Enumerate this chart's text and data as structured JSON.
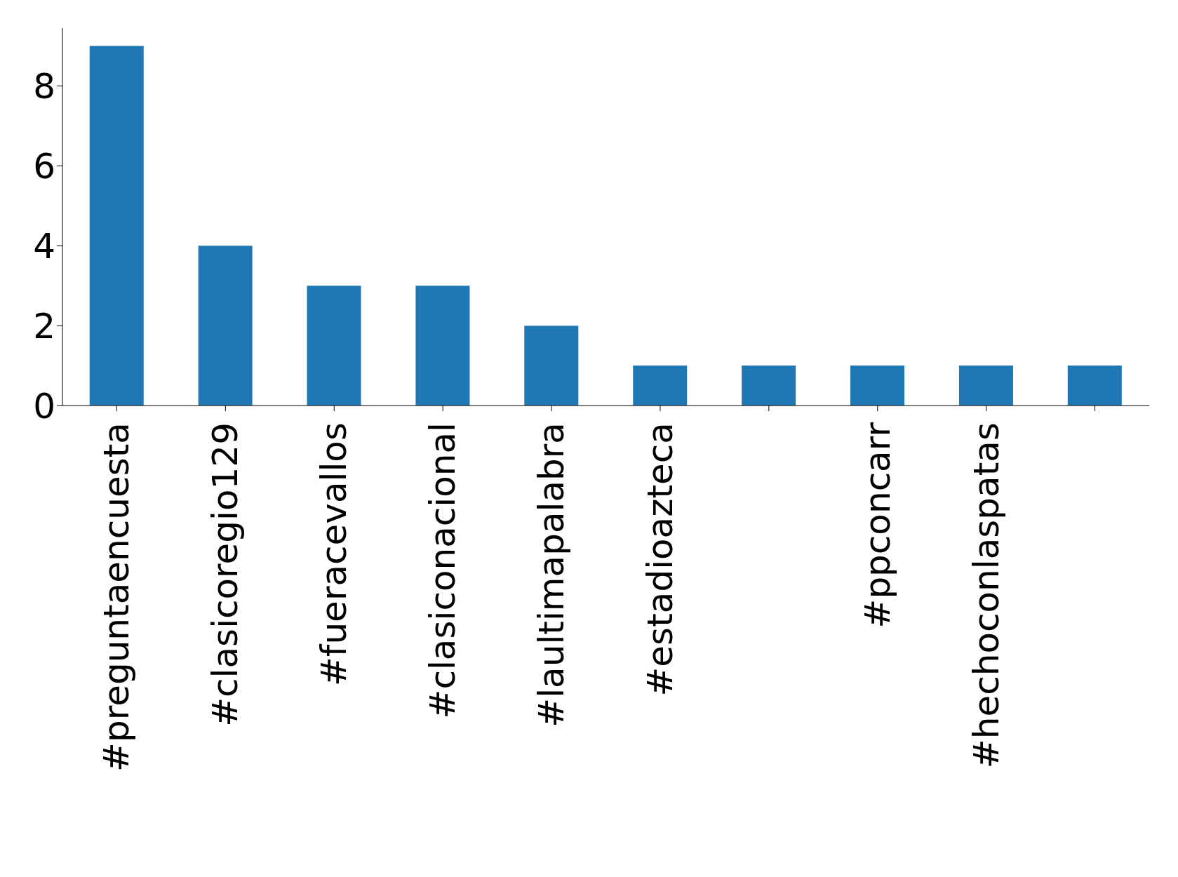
{
  "chart_data": {
    "type": "bar",
    "categories": [
      "#preguntaencuesta",
      "#clasicoregio129",
      "#fueracevallos",
      "#clasiconacional",
      "#laultimapalabra",
      "#estadioazteca",
      null,
      "#ppconcarr",
      "#hechoconlaspatas",
      null
    ],
    "values": [
      9,
      4,
      3,
      3,
      2,
      1,
      1,
      1,
      1,
      1
    ],
    "color": "#1f77b4",
    "ylim": [
      0,
      9.45
    ],
    "yticks": [
      0,
      2,
      4,
      6,
      8
    ],
    "grid": false,
    "legend": false
  }
}
